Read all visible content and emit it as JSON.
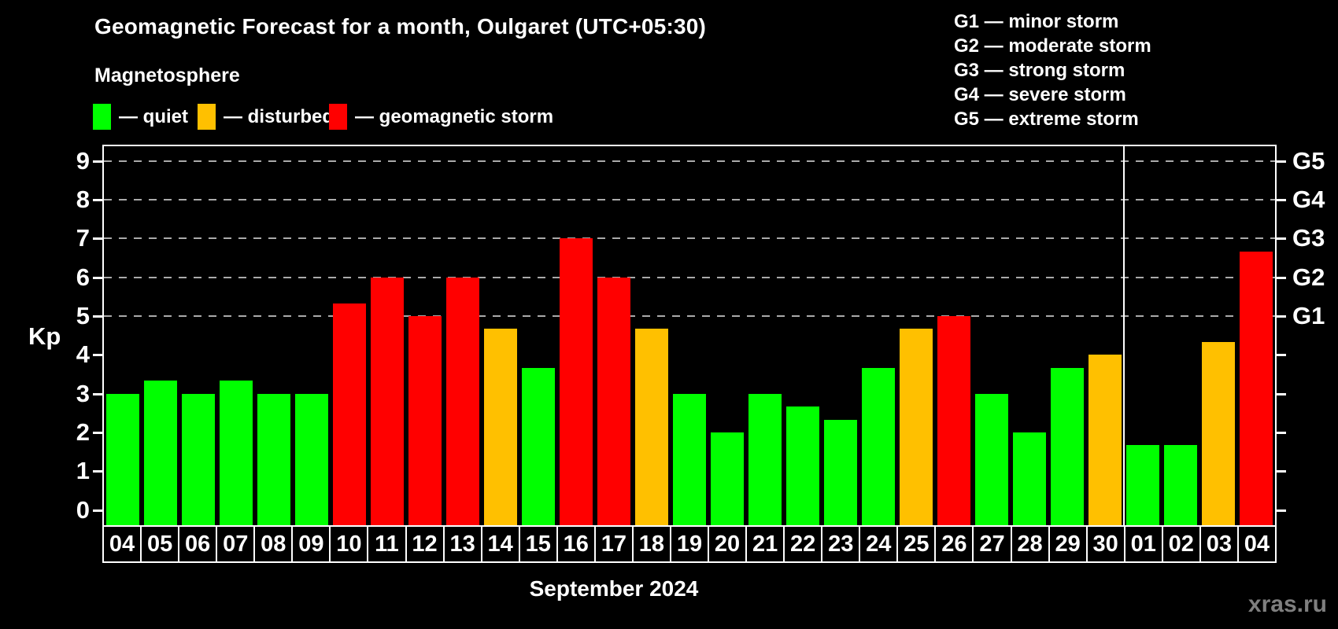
{
  "title": "Geomagnetic Forecast for a month, Oulgaret (UTC+05:30)",
  "subtitle": "Magnetosphere",
  "legend": {
    "quiet_label": "— quiet",
    "disturbed_label": "— disturbed",
    "storm_label": "— geomagnetic storm"
  },
  "g_legend": [
    "G1 — minor storm",
    "G2 — moderate storm",
    "G3 — strong storm",
    "G4 — severe storm",
    "G5 — extreme storm"
  ],
  "watermark": "xras.ru",
  "colors": {
    "quiet": "#00ff00",
    "disturbed": "#ffc000",
    "storm": "#ff0000",
    "grid": "#aaaaaa",
    "axis": "#ffffff",
    "watermark": "#7f7f7f",
    "background": "#000000"
  },
  "chart_data": {
    "type": "bar",
    "title": "Geomagnetic Forecast for a month, Oulgaret (UTC+05:30)",
    "xlabel": "September 2024",
    "ylabel": "Kp",
    "ylim": [
      0,
      9
    ],
    "y_ticks": [
      0,
      1,
      2,
      3,
      4,
      5,
      6,
      7,
      8,
      9
    ],
    "gridlines_at_kp": [
      5,
      6,
      7,
      8,
      9
    ],
    "right_axis_labels": [
      {
        "kp": 5,
        "label": "G1"
      },
      {
        "kp": 6,
        "label": "G2"
      },
      {
        "kp": 7,
        "label": "G3"
      },
      {
        "kp": 8,
        "label": "G4"
      },
      {
        "kp": 9,
        "label": "G5"
      }
    ],
    "categories": [
      "04",
      "05",
      "06",
      "07",
      "08",
      "09",
      "10",
      "11",
      "12",
      "13",
      "14",
      "15",
      "16",
      "17",
      "18",
      "19",
      "20",
      "21",
      "22",
      "23",
      "24",
      "25",
      "26",
      "27",
      "28",
      "29",
      "30",
      "01",
      "02",
      "03",
      "04"
    ],
    "values": [
      3,
      3.33,
      3,
      3.33,
      3,
      3,
      5.33,
      6,
      5,
      6,
      4.67,
      3.67,
      7,
      6,
      4.67,
      3,
      2,
      3,
      2.67,
      2.33,
      3.67,
      4.67,
      5,
      3,
      2,
      3.67,
      4,
      1.67,
      1.67,
      4.33,
      6.67
    ],
    "statuses": [
      "quiet",
      "quiet",
      "quiet",
      "quiet",
      "quiet",
      "quiet",
      "storm",
      "storm",
      "storm",
      "storm",
      "disturbed",
      "quiet",
      "storm",
      "storm",
      "disturbed",
      "quiet",
      "quiet",
      "quiet",
      "quiet",
      "quiet",
      "quiet",
      "disturbed",
      "storm",
      "quiet",
      "quiet",
      "quiet",
      "disturbed",
      "quiet",
      "quiet",
      "disturbed",
      "storm"
    ],
    "month_separator_after_index": 26,
    "legend_entries": [
      {
        "status": "quiet",
        "label": "— quiet"
      },
      {
        "status": "disturbed",
        "label": "— disturbed"
      },
      {
        "status": "storm",
        "label": "— geomagnetic storm"
      }
    ]
  }
}
